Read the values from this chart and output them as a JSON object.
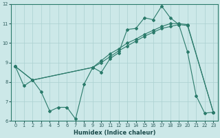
{
  "xlabel": "Humidex (Indice chaleur)",
  "background_color": "#cce8e8",
  "line_color": "#2a7a6a",
  "grid_color": "#aad0d0",
  "xlim": [
    -0.5,
    23.5
  ],
  "ylim": [
    6,
    12
  ],
  "yticks": [
    6,
    7,
    8,
    9,
    10,
    11,
    12
  ],
  "xticks": [
    0,
    1,
    2,
    3,
    4,
    5,
    6,
    7,
    8,
    9,
    10,
    11,
    12,
    13,
    14,
    15,
    16,
    17,
    18,
    19,
    20,
    21,
    22,
    23
  ],
  "line1_x": [
    0,
    1,
    2,
    3,
    4,
    5,
    6,
    7,
    8,
    9,
    10,
    11,
    12,
    13,
    14,
    15,
    16,
    17,
    18,
    19,
    20,
    21,
    22,
    23
  ],
  "line1_y": [
    8.8,
    7.8,
    8.1,
    7.5,
    6.5,
    6.7,
    6.7,
    6.1,
    7.9,
    8.75,
    8.5,
    9.2,
    9.5,
    10.7,
    10.75,
    11.3,
    11.2,
    11.9,
    11.3,
    10.95,
    9.55,
    7.3,
    6.4,
    6.45
  ],
  "line2_x": [
    0,
    2,
    9,
    10,
    11,
    12,
    13,
    14,
    15,
    16,
    17,
    18,
    19,
    20,
    23
  ],
  "line2_y": [
    8.8,
    8.1,
    8.75,
    9.0,
    9.3,
    9.6,
    9.85,
    10.1,
    10.35,
    10.55,
    10.75,
    10.85,
    10.95,
    10.9,
    6.45
  ],
  "line3_x": [
    0,
    2,
    9,
    10,
    11,
    12,
    13,
    14,
    15,
    16,
    17,
    18,
    19,
    20,
    23
  ],
  "line3_y": [
    8.8,
    8.1,
    8.75,
    9.1,
    9.45,
    9.7,
    10.0,
    10.2,
    10.45,
    10.65,
    10.85,
    11.0,
    11.0,
    10.95,
    6.45
  ]
}
